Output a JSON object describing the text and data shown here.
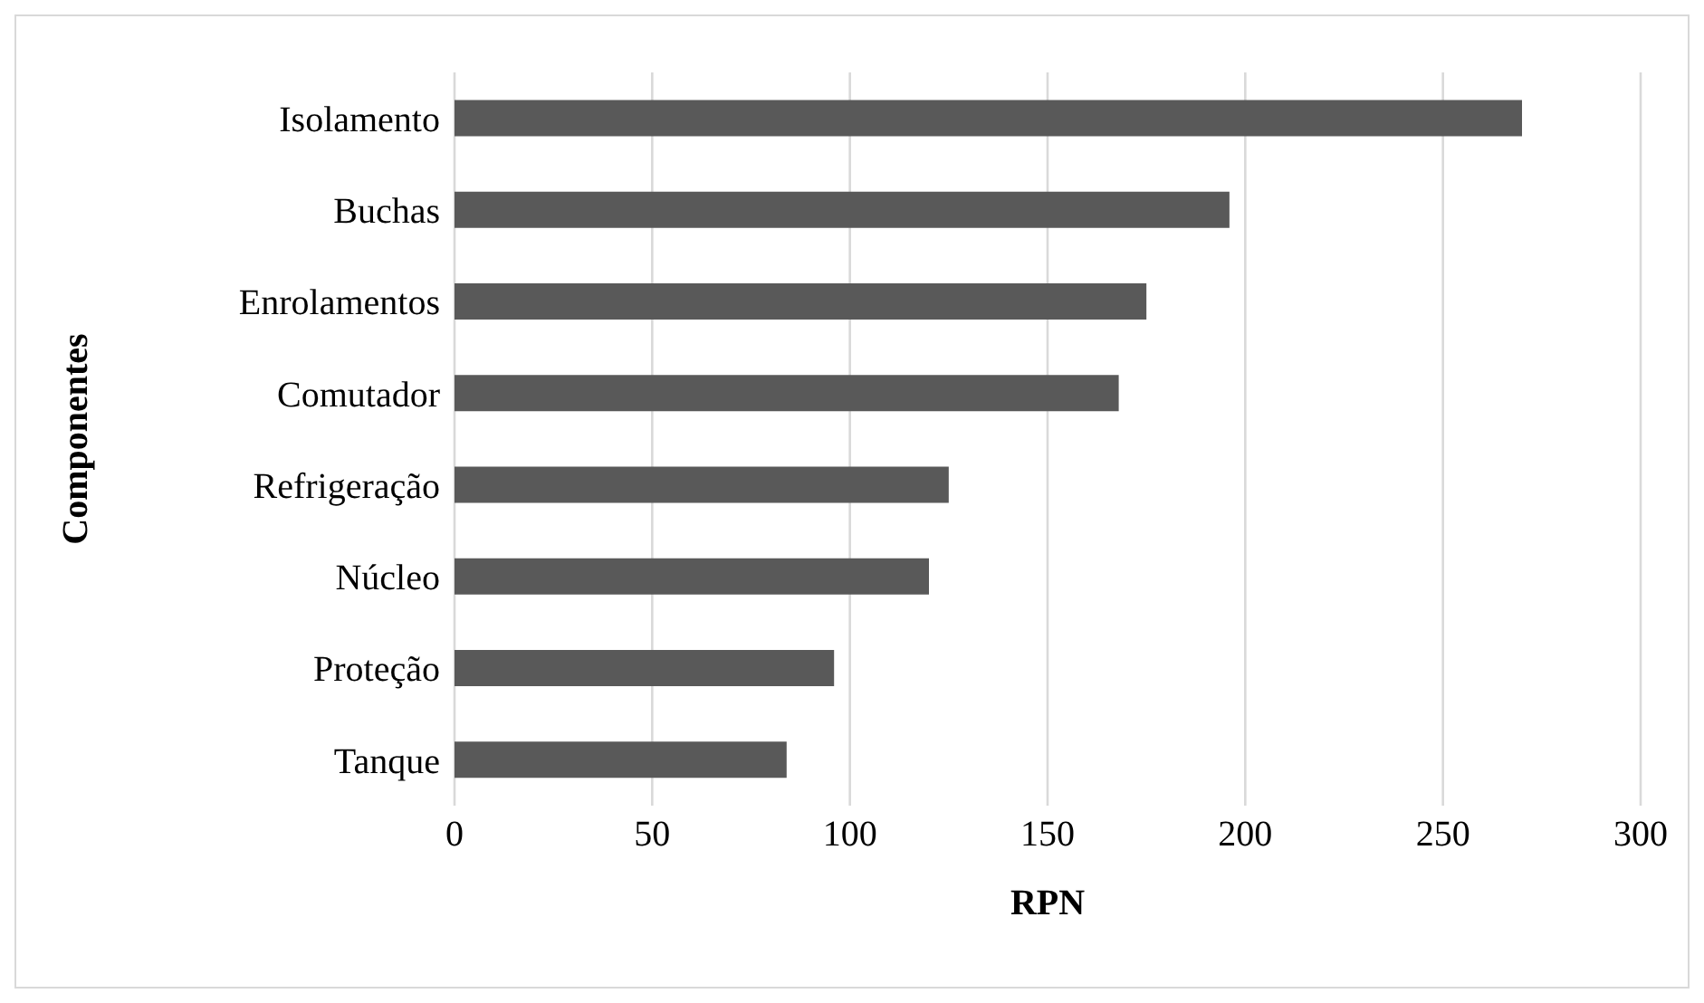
{
  "chart_data": {
    "type": "bar",
    "orientation": "horizontal",
    "xlabel": "RPN",
    "ylabel": "Componentes",
    "categories": [
      "Isolamento",
      "Buchas",
      "Enrolamentos",
      "Comutador",
      "Refrigeração",
      "Núcleo",
      "Proteção",
      "Tanque"
    ],
    "values": [
      270,
      196,
      175,
      168,
      125,
      120,
      96,
      84
    ],
    "color": "#595959",
    "xlim": [
      0,
      300
    ],
    "xticks": [
      0,
      50,
      100,
      150,
      200,
      250,
      300
    ],
    "grid": "x"
  }
}
